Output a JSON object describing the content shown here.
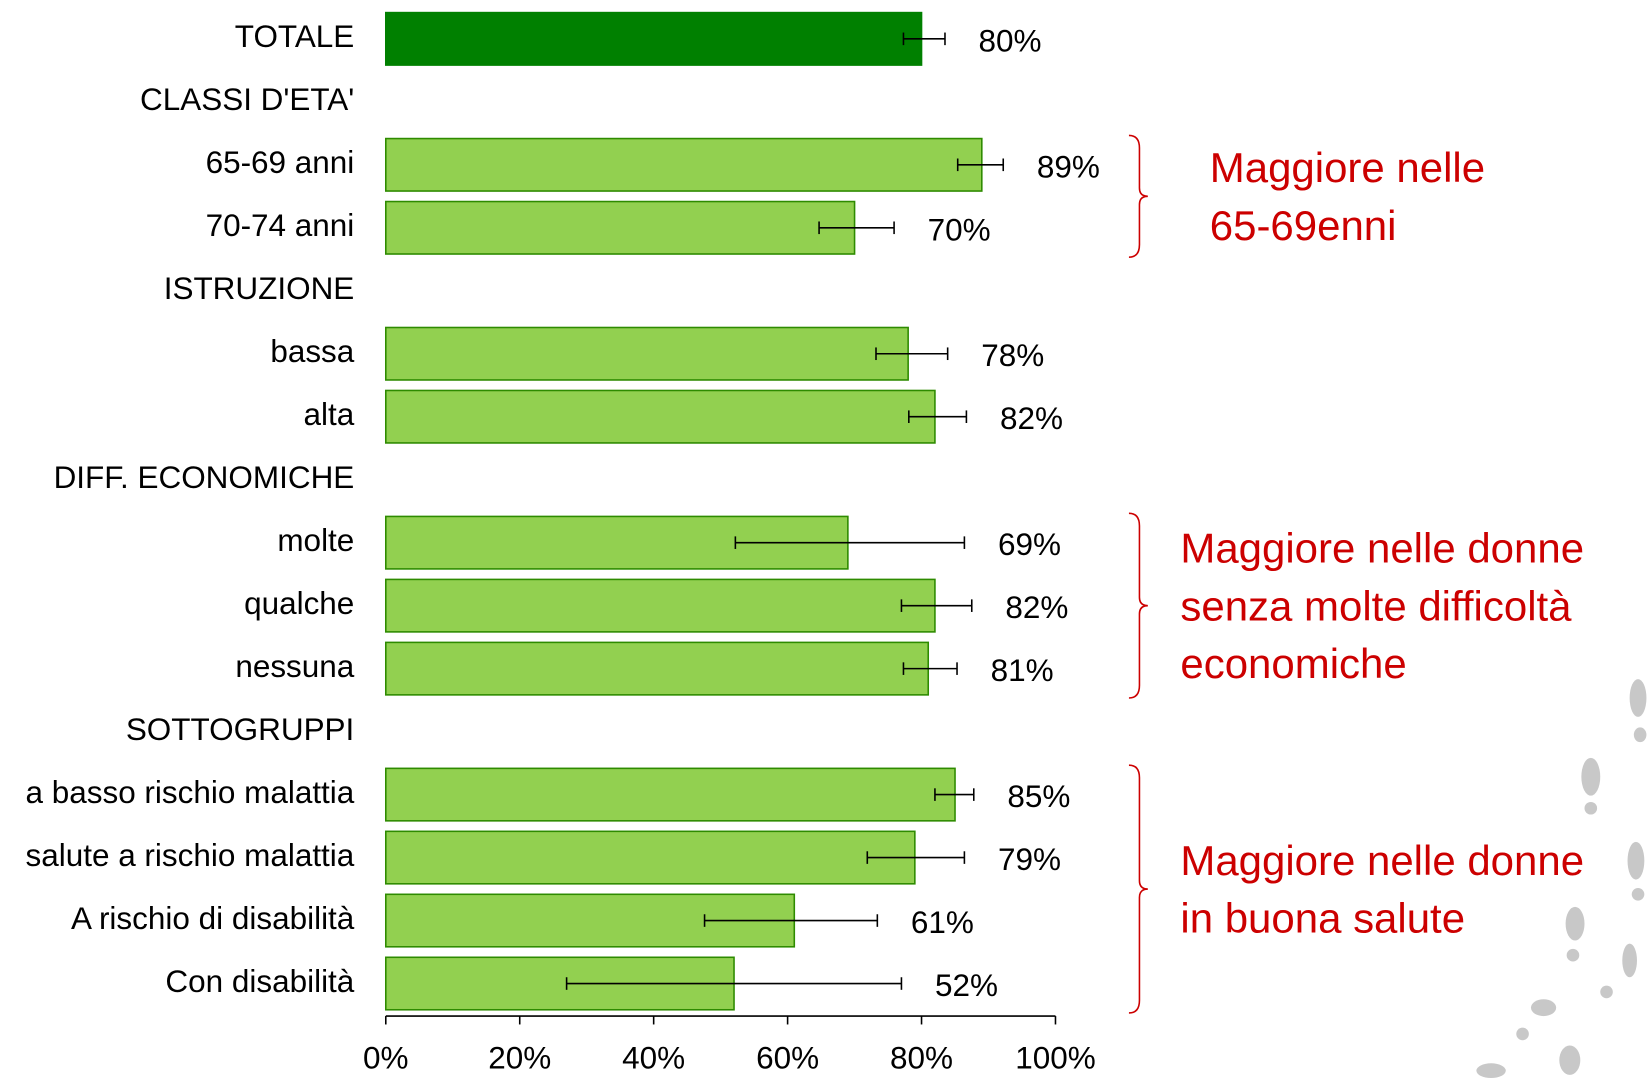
{
  "chart_data": {
    "type": "bar",
    "orientation": "horizontal",
    "categories": [
      "TOTALE",
      "CLASSI D'ETA'",
      "65-69 anni",
      "70-74 anni",
      "ISTRUZIONE",
      "bassa",
      "alta",
      "DIFF. ECONOMICHE",
      "molte",
      "qualche",
      "nessuna",
      "SOTTOGRUPPI",
      "a basso rischio malattia",
      "salute a rischio malattia",
      "A rischio di disabilità",
      "Con disabilità"
    ],
    "values": [
      80,
      null,
      89,
      70,
      null,
      78,
      82,
      null,
      69,
      82,
      81,
      null,
      85,
      79,
      61,
      52
    ],
    "value_labels": [
      "80%",
      null,
      "89%",
      "70%",
      null,
      "78%",
      "82%",
      null,
      "69%",
      "82%",
      "81%",
      null,
      "85%",
      "79%",
      "61%",
      "52%"
    ],
    "error_low": [
      77.3,
      null,
      85.4,
      64.7,
      null,
      73.2,
      78.1,
      null,
      52.2,
      77,
      77.3,
      null,
      82,
      71.9,
      47.6,
      27
    ],
    "error_high": [
      83.5,
      null,
      92.2,
      75.9,
      null,
      83.9,
      86.7,
      null,
      86.4,
      87.5,
      85.3,
      null,
      87.8,
      86.4,
      73.4,
      77
    ],
    "colors": [
      "#008000",
      null,
      "#92d050",
      "#92d050",
      null,
      "#92d050",
      "#92d050",
      null,
      "#92d050",
      "#92d050",
      "#92d050",
      null,
      "#92d050",
      "#92d050",
      "#92d050",
      "#92d050"
    ],
    "xlim": [
      0,
      100
    ],
    "xticks": [
      {
        "value": 0,
        "label": "0%"
      },
      {
        "value": 20,
        "label": "20%"
      },
      {
        "value": 40,
        "label": "40%"
      },
      {
        "value": 60,
        "label": "60%"
      },
      {
        "value": 80,
        "label": "80%"
      },
      {
        "value": 100,
        "label": "100%"
      }
    ],
    "annotations": [
      {
        "lines": [
          "Maggiore nelle",
          "65-69enni"
        ],
        "rows": [
          2,
          3
        ]
      },
      {
        "lines": [
          "Maggiore nelle donne",
          "senza molte difficoltà",
          "economiche"
        ],
        "rows": [
          8,
          10
        ]
      },
      {
        "lines": [
          "Maggiore nelle donne",
          "in buona salute"
        ],
        "rows": [
          12,
          15
        ]
      }
    ]
  }
}
